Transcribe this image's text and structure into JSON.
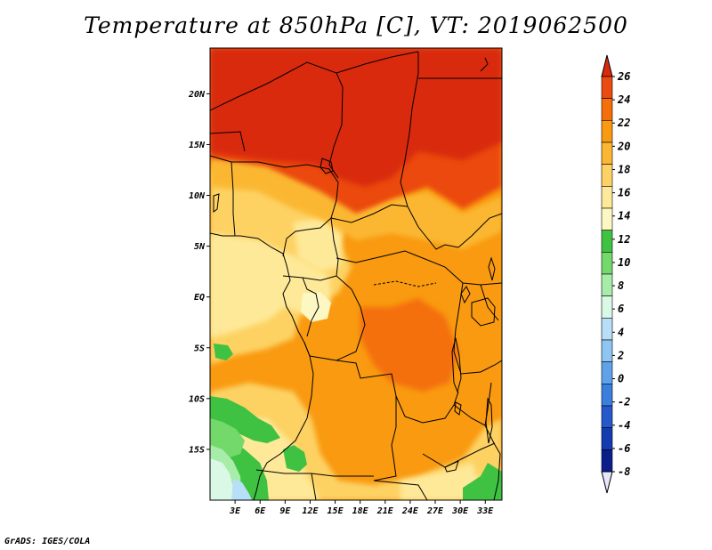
{
  "title": "Temperature at 850hPa [C], VT: 2019062500",
  "credit": "GrADS: IGES/COLA",
  "map": {
    "region": "Central Africa",
    "lon_range": [
      0,
      35
    ],
    "lat_range": [
      -20,
      24.5
    ],
    "lat_ticks": [
      {
        "value": 20,
        "label": "20N"
      },
      {
        "value": 15,
        "label": "15N"
      },
      {
        "value": 10,
        "label": "10N"
      },
      {
        "value": 5,
        "label": "5N"
      },
      {
        "value": 0,
        "label": "EQ"
      },
      {
        "value": -5,
        "label": "5S"
      },
      {
        "value": -10,
        "label": "10S"
      },
      {
        "value": -15,
        "label": "15S"
      }
    ],
    "lon_ticks": [
      {
        "value": 3,
        "label": "3E"
      },
      {
        "value": 6,
        "label": "6E"
      },
      {
        "value": 9,
        "label": "9E"
      },
      {
        "value": 12,
        "label": "12E"
      },
      {
        "value": 15,
        "label": "15E"
      },
      {
        "value": 18,
        "label": "18E"
      },
      {
        "value": 21,
        "label": "21E"
      },
      {
        "value": 24,
        "label": "24E"
      },
      {
        "value": 27,
        "label": "27E"
      },
      {
        "value": 30,
        "label": "30E"
      },
      {
        "value": 33,
        "label": "33E"
      }
    ]
  },
  "colorbar": {
    "levels": [
      "26",
      "24",
      "22",
      "20",
      "18",
      "16",
      "14",
      "12",
      "10",
      "8",
      "6",
      "4",
      "2",
      "0",
      "-2",
      "-4",
      "-6",
      "-8"
    ],
    "colors": [
      "#d92a0e",
      "#eb4a10",
      "#f46f0a",
      "#f99a10",
      "#fbb733",
      "#fdd264",
      "#fee999",
      "#fdf8c3",
      "#3fc242",
      "#74d96b",
      "#a8ecaa",
      "#daf8e6",
      "#b8dff8",
      "#8fc5f3",
      "#5fa2ea",
      "#3b7fde",
      "#2459cc",
      "#153bb0",
      "#0a1f8a"
    ],
    "under_color": "#e6e6ff"
  }
}
